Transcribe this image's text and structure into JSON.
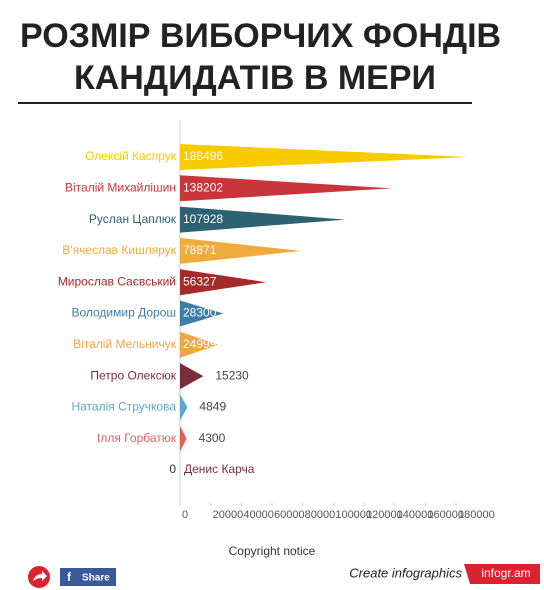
{
  "chart_data": {
    "type": "bar",
    "orientation": "horizontal",
    "title": [
      "РОЗМІР ВИБОРЧИХ ФОНДІВ",
      "КАНДИДАТІВ В МЕРИ"
    ],
    "categories": [
      "Олексій Каспрук",
      "Віталій Михайлішин",
      "Руслан Цаплюк",
      "В'ячеслав Кишлярук",
      "Мирослав Саєвський",
      "Володимир Дорош",
      "Віталій Мельничук",
      "Петро Олексюк",
      "Наталія Стручкова",
      "Ілля Горбатюк",
      "Денис Карча"
    ],
    "values": [
      188496,
      138202,
      107928,
      78871,
      56327,
      28300,
      24999,
      15230,
      4849,
      4300,
      0
    ],
    "colors": [
      "#f7cb00",
      "#c8363b",
      "#2d6272",
      "#efab3c",
      "#a62a2a",
      "#3d7da6",
      "#f0a54b",
      "#7b2c3b",
      "#5ba9c8",
      "#e0625b",
      "#7b2c3b"
    ],
    "xlim": [
      0,
      180000
    ],
    "xticks": [
      0,
      20000,
      40000,
      60000,
      80000,
      100000,
      120000,
      140000,
      160000,
      180000
    ]
  },
  "footer": {
    "copyright": "Copyright notice",
    "share": "Share",
    "create": "Create infographics",
    "brand": "infogr.am"
  }
}
